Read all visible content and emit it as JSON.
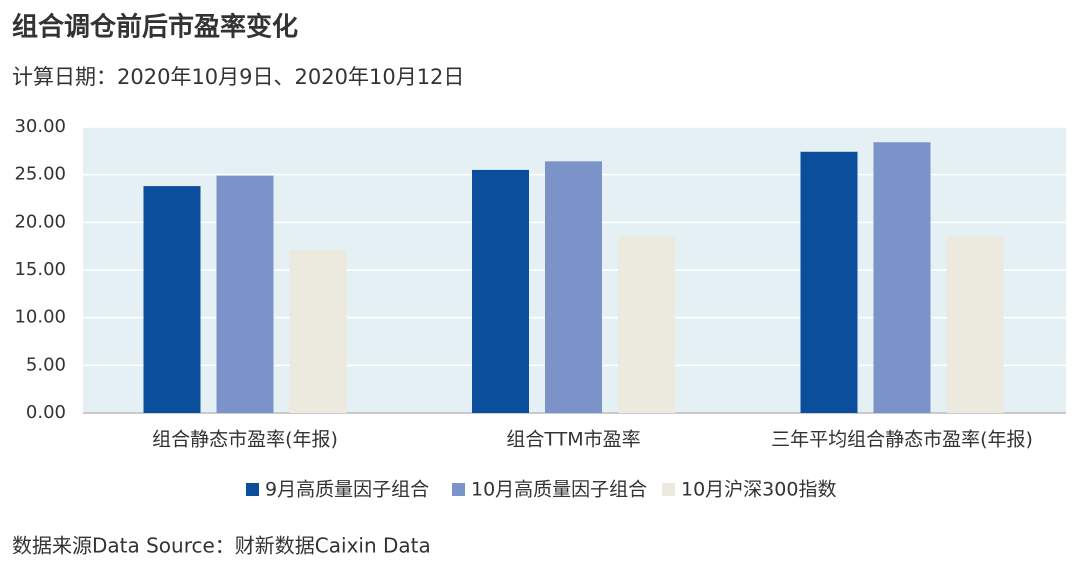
{
  "chart_data": {
    "type": "bar",
    "title": "组合调仓前后市盈率变化",
    "subtitle": "计算日期：2020年10月9日、2020年10月12日",
    "source": "数据来源Data Source：财新数据Caixin Data",
    "categories": [
      "组合静态市盈率(年报)",
      "组合TTM市盈率",
      "三年平均组合静态市盈率(年报)"
    ],
    "series": [
      {
        "name": "9月高质量因子组合",
        "color": "#0b4f9c",
        "values": [
          23.8,
          25.5,
          27.4
        ]
      },
      {
        "name": "10月高质量因子组合",
        "color": "#7c93c9",
        "values": [
          24.9,
          26.4,
          28.4
        ]
      },
      {
        "name": "10月沪深300指数",
        "color": "#ece9df",
        "values": [
          17.1,
          18.5,
          18.5
        ]
      }
    ],
    "ylim": [
      0,
      30
    ],
    "yticks": [
      {
        "value": 0,
        "label": "0.00"
      },
      {
        "value": 5,
        "label": "5.00"
      },
      {
        "value": 10,
        "label": "10.00"
      },
      {
        "value": 15,
        "label": "15.00"
      },
      {
        "value": 20,
        "label": "20.00"
      },
      {
        "value": 25,
        "label": "25.00"
      },
      {
        "value": 30,
        "label": "30.00"
      }
    ],
    "grid": true
  }
}
